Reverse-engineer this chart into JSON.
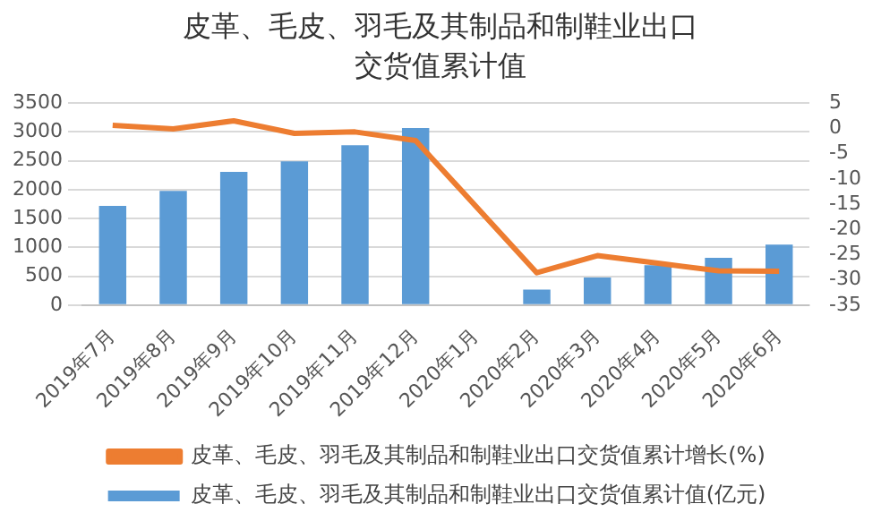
{
  "chart_data": {
    "type": "bar",
    "title": "皮革、毛皮、羽毛及其制品和制鞋业出口交货值累计值",
    "categories": [
      "2019年7月",
      "2019年8月",
      "2019年9月",
      "2019年10月",
      "2019年11月",
      "2019年12月",
      "2020年1月",
      "2020年2月",
      "2020年3月",
      "2020年4月",
      "2020年5月",
      "2020年6月"
    ],
    "series": [
      {
        "name": "皮革、毛皮、羽毛及其制品和制鞋业出口交货值累计值(亿元)",
        "color": "#5b9bd5",
        "values": [
          1720,
          1980,
          2310,
          2490,
          2770,
          3070,
          null,
          270,
          480,
          690,
          820,
          1050
        ]
      },
      {
        "name": "皮革、毛皮、羽毛及其制品和制鞋业出口交货值累计增长(%)",
        "type": "line",
        "axis": "y2",
        "color": "#ed7d31",
        "values": [
          0.6,
          -0.1,
          1.5,
          -1,
          -0.7,
          -2.4,
          null,
          -28.6,
          -25.2,
          -26.7,
          -28.2,
          -28.3
        ]
      }
    ],
    "ylim": [
      0,
      3500
    ],
    "yticks": [
      0,
      500,
      1000,
      1500,
      2000,
      2500,
      3000,
      3500
    ],
    "y2lim": [
      -35,
      5
    ],
    "y2ticks": [
      -35,
      -30,
      -25,
      -20,
      -15,
      -10,
      -5,
      0,
      5
    ],
    "grid": "y",
    "legend": "bottom",
    "marker": "none"
  }
}
